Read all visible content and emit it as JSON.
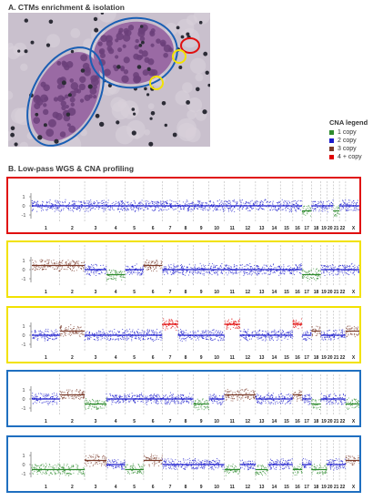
{
  "section_a": {
    "title": "A. CTMs enrichment & isolation"
  },
  "section_b": {
    "title": "B. Low-pass WGS & CNA profiling"
  },
  "legend": {
    "title": "CNA legend",
    "items": [
      {
        "label": "1 copy",
        "color": "#2e8b2e"
      },
      {
        "label": "2 copy",
        "color": "#1c1ccc"
      },
      {
        "label": "3 copy",
        "color": "#7a3b2a"
      },
      {
        "label": "4 + copy",
        "color": "#e00000"
      }
    ]
  },
  "panels": [
    {
      "border_color": "#e01010",
      "axis_ticks": [
        "1",
        "0",
        "-1"
      ],
      "segments": [
        {
          "chrom": "17",
          "state": "1 copy"
        },
        {
          "chrom": "21",
          "state": "1 copy"
        }
      ]
    },
    {
      "border_color": "#f2e200",
      "axis_ticks": [
        "1",
        "0",
        "-1"
      ],
      "segments": [
        {
          "chrom": "1",
          "state": "3 copy"
        },
        {
          "chrom": "2",
          "state": "3 copy"
        },
        {
          "chrom": "4",
          "state": "1 copy"
        },
        {
          "chrom": "6",
          "state": "3 copy"
        },
        {
          "chrom": "17",
          "state": "1 copy"
        },
        {
          "chrom": "18",
          "state": "1 copy"
        }
      ]
    },
    {
      "border_color": "#f2e200",
      "axis_ticks": [
        "1",
        "0",
        "-1"
      ],
      "segments": [
        {
          "chrom": "2",
          "state": "3 copy"
        },
        {
          "chrom": "7",
          "state": "4 + copy"
        },
        {
          "chrom": "11",
          "state": "4 + copy"
        },
        {
          "chrom": "16",
          "state": "4 + copy"
        },
        {
          "chrom": "18",
          "state": "3 copy"
        },
        {
          "chrom": "X",
          "state": "3 copy"
        }
      ]
    },
    {
      "border_color": "#1f6fc0",
      "axis_ticks": [
        "1",
        "0",
        "-1"
      ],
      "segments": [
        {
          "chrom": "2",
          "state": "3 copy"
        },
        {
          "chrom": "3",
          "state": "1 copy"
        },
        {
          "chrom": "9",
          "state": "1 copy"
        },
        {
          "chrom": "11",
          "state": "3 copy"
        },
        {
          "chrom": "12",
          "state": "3 copy"
        },
        {
          "chrom": "16",
          "state": "3 copy"
        },
        {
          "chrom": "18",
          "state": "1 copy"
        },
        {
          "chrom": "X",
          "state": "1 copy"
        }
      ]
    },
    {
      "border_color": "#1f6fc0",
      "axis_ticks": [
        "1",
        "0",
        "-1"
      ],
      "segments": [
        {
          "chrom": "1",
          "state": "1 copy"
        },
        {
          "chrom": "2",
          "state": "1 copy"
        },
        {
          "chrom": "3",
          "state": "3 copy"
        },
        {
          "chrom": "5",
          "state": "1 copy"
        },
        {
          "chrom": "6",
          "state": "3 copy"
        },
        {
          "chrom": "11",
          "state": "1 copy"
        },
        {
          "chrom": "13",
          "state": "1 copy"
        },
        {
          "chrom": "16",
          "state": "1 copy"
        },
        {
          "chrom": "18",
          "state": "1 copy"
        },
        {
          "chrom": "19",
          "state": "1 copy"
        },
        {
          "chrom": "X",
          "state": "3 copy"
        }
      ]
    }
  ],
  "chromosomes": [
    "1",
    "2",
    "3",
    "4",
    "5",
    "6",
    "7",
    "8",
    "9",
    "10",
    "11",
    "12",
    "13",
    "14",
    "15",
    "16",
    "17",
    "18",
    "19",
    "20",
    "21",
    "22",
    "X"
  ],
  "colors": {
    "micro_circle_blue": "#1a5fb4",
    "micro_circle_red": "#e01010",
    "micro_circle_yellow": "#f2e200"
  }
}
